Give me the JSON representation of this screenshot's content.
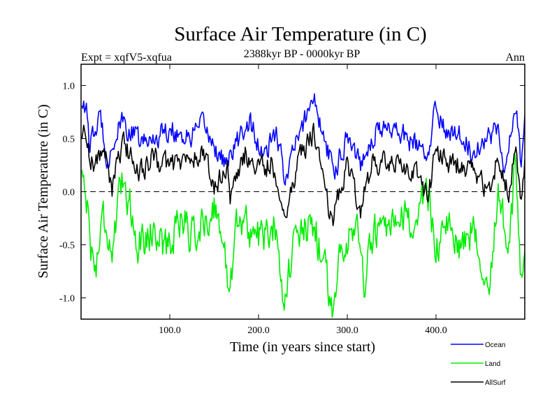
{
  "header": {
    "title": "Surface Air Temperature (in C)",
    "expt": "Expt = xqfV5-xqfua",
    "period": "2388kyr BP - 0000kyr BP",
    "season": "Ann"
  },
  "chart_data": {
    "type": "line",
    "title": "Surface Air Temperature (in C)",
    "xlabel": "Time (in years since start)",
    "ylabel": "Surface Air Temperature (in C)",
    "xlim": [
      0,
      500
    ],
    "ylim": [
      -1.2,
      1.2
    ],
    "x_ticks": [
      100,
      200,
      300,
      400
    ],
    "x_tick_labels": [
      "100.0",
      "200.0",
      "300.0",
      "400.0"
    ],
    "y_ticks": [
      1.0,
      0.5,
      0.0,
      -0.5,
      -1.0
    ],
    "y_tick_labels": [
      "1.0",
      "0.5",
      "0.0",
      "-0.5",
      "-1.0"
    ],
    "zero_line": true,
    "legend_position": "bottom-right",
    "x": {
      "start": 1,
      "end": 500,
      "step": 1
    },
    "series": [
      {
        "name": "Ocean",
        "color": "#0000ff",
        "mean": 0.58,
        "std": 0.12,
        "anchors": [
          [
            1,
            0.82
          ],
          [
            3,
            0.9
          ],
          [
            6,
            0.75
          ],
          [
            10,
            0.42
          ],
          [
            15,
            0.55
          ],
          [
            22,
            0.7
          ],
          [
            30,
            0.3
          ],
          [
            45,
            0.65
          ],
          [
            70,
            0.45
          ],
          [
            100,
            0.6
          ],
          [
            120,
            0.5
          ],
          [
            140,
            0.62
          ],
          [
            150,
            0.42
          ],
          [
            165,
            0.25
          ],
          [
            175,
            0.45
          ],
          [
            190,
            0.68
          ],
          [
            205,
            0.3
          ],
          [
            220,
            0.55
          ],
          [
            229,
            0.15
          ],
          [
            245,
            0.5
          ],
          [
            262,
            0.93
          ],
          [
            270,
            0.6
          ],
          [
            285,
            0.18
          ],
          [
            300,
            0.55
          ],
          [
            315,
            0.28
          ],
          [
            330,
            0.55
          ],
          [
            350,
            0.62
          ],
          [
            375,
            0.45
          ],
          [
            392,
            0.3
          ],
          [
            400,
            0.85
          ],
          [
            410,
            0.55
          ],
          [
            425,
            0.6
          ],
          [
            440,
            0.38
          ],
          [
            455,
            0.5
          ],
          [
            470,
            0.6
          ],
          [
            478,
            0.22
          ],
          [
            490,
            0.8
          ],
          [
            496,
            0.25
          ],
          [
            500,
            0.65
          ]
        ]
      },
      {
        "name": "Land",
        "color": "#00ee00",
        "mean": -0.35,
        "std": 0.2,
        "anchors": [
          [
            1,
            0.2
          ],
          [
            5,
            0.05
          ],
          [
            10,
            -0.4
          ],
          [
            15,
            -0.78
          ],
          [
            25,
            -0.2
          ],
          [
            35,
            -0.55
          ],
          [
            48,
            0.15
          ],
          [
            65,
            -0.5
          ],
          [
            80,
            -0.35
          ],
          [
            100,
            -0.55
          ],
          [
            110,
            -0.2
          ],
          [
            125,
            -0.4
          ],
          [
            140,
            -0.3
          ],
          [
            152,
            -0.1
          ],
          [
            160,
            -0.6
          ],
          [
            168,
            -0.88
          ],
          [
            175,
            -0.25
          ],
          [
            190,
            -0.35
          ],
          [
            205,
            -0.45
          ],
          [
            220,
            -0.3
          ],
          [
            229,
            -1.02
          ],
          [
            240,
            -0.5
          ],
          [
            262,
            -0.3
          ],
          [
            270,
            -0.55
          ],
          [
            283,
            -1.08
          ],
          [
            295,
            -0.45
          ],
          [
            310,
            -0.3
          ],
          [
            320,
            -0.88
          ],
          [
            330,
            -0.35
          ],
          [
            345,
            -0.45
          ],
          [
            360,
            -0.3
          ],
          [
            375,
            -0.25
          ],
          [
            392,
            -0.05
          ],
          [
            400,
            -0.5
          ],
          [
            410,
            -0.35
          ],
          [
            425,
            -0.5
          ],
          [
            440,
            -0.35
          ],
          [
            460,
            -0.8
          ],
          [
            470,
            -0.05
          ],
          [
            482,
            -0.55
          ],
          [
            490,
            0.3
          ],
          [
            495,
            -0.7
          ],
          [
            500,
            -0.5
          ]
        ]
      },
      {
        "name": "AllSurf",
        "color": "#000000",
        "mean": 0.26,
        "std": 0.12,
        "anchors": [
          [
            1,
            0.48
          ],
          [
            5,
            0.6
          ],
          [
            10,
            0.35
          ],
          [
            15,
            0.25
          ],
          [
            25,
            0.4
          ],
          [
            35,
            0.05
          ],
          [
            48,
            0.45
          ],
          [
            65,
            0.2
          ],
          [
            80,
            0.3
          ],
          [
            100,
            0.25
          ],
          [
            120,
            0.3
          ],
          [
            140,
            0.35
          ],
          [
            150,
            0.0
          ],
          [
            165,
            0.3
          ],
          [
            168,
            -0.12
          ],
          [
            172,
            0.0
          ],
          [
            185,
            0.35
          ],
          [
            200,
            0.2
          ],
          [
            215,
            0.28
          ],
          [
            229,
            -0.22
          ],
          [
            245,
            0.3
          ],
          [
            262,
            0.56
          ],
          [
            270,
            0.3
          ],
          [
            283,
            -0.3
          ],
          [
            300,
            0.3
          ],
          [
            315,
            -0.15
          ],
          [
            330,
            0.3
          ],
          [
            350,
            0.25
          ],
          [
            375,
            0.2
          ],
          [
            392,
            -0.05
          ],
          [
            400,
            0.4
          ],
          [
            410,
            0.3
          ],
          [
            425,
            0.25
          ],
          [
            440,
            0.2
          ],
          [
            460,
            0.0
          ],
          [
            470,
            0.35
          ],
          [
            482,
            -0.05
          ],
          [
            490,
            0.55
          ],
          [
            496,
            -0.15
          ],
          [
            500,
            0.2
          ]
        ]
      }
    ]
  }
}
